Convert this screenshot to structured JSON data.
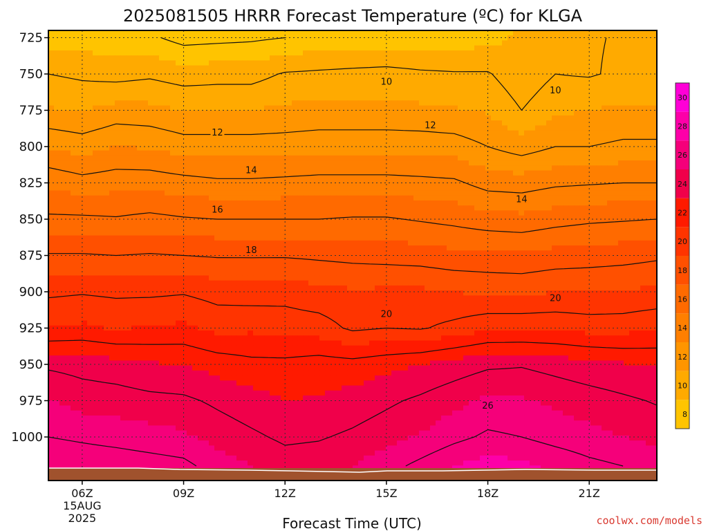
{
  "chart_data": {
    "type": "contour",
    "title": "2025081505 HRRR Forecast Temperature (ºC) for KLGA",
    "xlabel": "Forecast Time (UTC)",
    "ylabel": "",
    "credit": "coolwx.com/models",
    "x_ticks": [
      {
        "label": "06Z",
        "hour": 6,
        "sublabels": [
          "15AUG",
          "2025"
        ]
      },
      {
        "label": "09Z",
        "hour": 9
      },
      {
        "label": "12Z",
        "hour": 12
      },
      {
        "label": "15Z",
        "hour": 15
      },
      {
        "label": "18Z",
        "hour": 18
      },
      {
        "label": "21Z",
        "hour": 21
      }
    ],
    "x_range_hours": [
      5,
      23
    ],
    "y_ticks": [
      725,
      750,
      775,
      800,
      825,
      850,
      875,
      900,
      925,
      950,
      975,
      1000
    ],
    "y_range_hPa": [
      720,
      1030
    ],
    "y_axis_note": "pressure (hPa), inverted",
    "grid": "dotted",
    "colorbar": {
      "ticks": [
        8,
        10,
        12,
        14,
        16,
        18,
        20,
        22,
        24,
        26,
        28,
        30
      ],
      "range": [
        7,
        31
      ],
      "colors": [
        "#ffc400",
        "#ffaa00",
        "#ff9500",
        "#ff7f00",
        "#ff6a00",
        "#ff5000",
        "#ff3400",
        "#ff1a00",
        "#f0004a",
        "#f5007a",
        "#fd00a8",
        "#ff00d7"
      ],
      "boundaries": [
        7,
        9,
        11,
        13,
        15,
        17,
        19,
        21,
        23,
        25,
        27,
        29,
        31
      ]
    },
    "hour_columns": [
      5,
      6,
      7,
      8,
      9,
      10,
      11,
      12,
      13,
      14,
      15,
      16,
      17,
      18,
      19,
      20,
      21,
      22,
      23
    ],
    "levels_hPa": [
      725,
      750,
      775,
      800,
      825,
      850,
      875,
      900,
      925,
      950,
      975,
      1000,
      1020
    ],
    "temperature_grid": [
      [
        8.6,
        8.5,
        8.3,
        8.2,
        7.6,
        7.7,
        7.8,
        8.0,
        8.3,
        8.4,
        8.4,
        8.4,
        8.5,
        8.6,
        9.2,
        9.7,
        9.9,
        10.1,
        10.3
      ],
      [
        10.0,
        9.8,
        9.6,
        9.8,
        9.5,
        9.6,
        9.6,
        10.1,
        10.2,
        10.3,
        10.4,
        10.2,
        10.1,
        10.1,
        9.3,
        10.0,
        9.9,
        10.2,
        10.0
      ],
      [
        11.1,
        10.9,
        11.4,
        11.3,
        11.0,
        11.0,
        11.0,
        11.2,
        11.3,
        11.3,
        11.3,
        11.2,
        11.1,
        10.9,
        10.0,
        10.8,
        11.0,
        11.2,
        11.2
      ],
      [
        12.9,
        12.6,
        13.0,
        12.9,
        12.5,
        12.5,
        12.5,
        12.5,
        12.6,
        12.6,
        12.6,
        12.6,
        12.5,
        12.0,
        11.5,
        12.0,
        12.0,
        12.2,
        12.2
      ],
      [
        14.8,
        14.4,
        14.6,
        14.6,
        14.4,
        14.2,
        14.2,
        14.3,
        14.4,
        14.4,
        14.4,
        14.3,
        14.2,
        13.6,
        13.5,
        13.8,
        13.9,
        14.0,
        14.0
      ],
      [
        16.2,
        16.2,
        16.1,
        16.3,
        16.1,
        16.0,
        16.0,
        16.0,
        16.0,
        16.1,
        16.1,
        15.9,
        15.7,
        15.4,
        15.3,
        15.6,
        15.8,
        15.9,
        16.0
      ],
      [
        18.1,
        18.1,
        18.0,
        18.1,
        18.0,
        17.9,
        17.9,
        17.9,
        17.8,
        17.7,
        17.6,
        17.5,
        17.3,
        17.3,
        17.2,
        17.4,
        17.5,
        17.6,
        17.8
      ],
      [
        19.8,
        19.9,
        19.8,
        19.8,
        19.9,
        19.6,
        19.5,
        19.6,
        19.3,
        19.1,
        19.2,
        19.2,
        19.0,
        18.8,
        18.8,
        19.0,
        19.0,
        19.1,
        19.2
      ],
      [
        21.0,
        21.2,
        20.9,
        21.1,
        21.2,
        20.7,
        20.8,
        20.6,
        20.5,
        19.8,
        20.0,
        19.9,
        20.3,
        20.8,
        20.8,
        20.8,
        20.6,
        20.6,
        20.9
      ],
      [
        23.8,
        23.6,
        23.4,
        23.1,
        23.0,
        22.6,
        22.3,
        22.3,
        22.5,
        22.4,
        22.7,
        23.0,
        23.4,
        23.8,
        23.9,
        23.6,
        23.3,
        23.1,
        22.9
      ],
      [
        25.1,
        24.6,
        24.5,
        24.3,
        24.2,
        23.8,
        23.4,
        23.0,
        23.1,
        23.4,
        23.8,
        24.2,
        24.7,
        25.2,
        25.1,
        24.8,
        24.5,
        24.2,
        23.9
      ],
      [
        26.0,
        25.8,
        25.6,
        25.4,
        25.2,
        24.6,
        24.2,
        23.8,
        23.9,
        24.2,
        24.6,
        25.1,
        25.7,
        26.2,
        26.0,
        25.6,
        25.3,
        25.0,
        24.7
      ],
      [
        27.0,
        26.8,
        26.7,
        26.5,
        26.3,
        25.5,
        25.0,
        24.5,
        24.6,
        25.0,
        25.6,
        26.3,
        27.0,
        27.5,
        27.2,
        26.8,
        26.3,
        26.0,
        25.6
      ]
    ],
    "contour_labels": [
      {
        "value": "10",
        "hour": 15.0,
        "level": 755
      },
      {
        "value": "10",
        "hour": 20.0,
        "level": 761
      },
      {
        "value": "12",
        "hour": 10.0,
        "level": 790
      },
      {
        "value": "12",
        "hour": 16.3,
        "level": 785
      },
      {
        "value": "14",
        "hour": 11.0,
        "level": 816
      },
      {
        "value": "14",
        "hour": 19.0,
        "level": 836
      },
      {
        "value": "16",
        "hour": 10.0,
        "level": 843
      },
      {
        "value": "18",
        "hour": 11.0,
        "level": 871
      },
      {
        "value": "20",
        "hour": 15.0,
        "level": 915
      },
      {
        "value": "20",
        "hour": 20.0,
        "level": 904
      },
      {
        "value": "26",
        "hour": 18.0,
        "level": 978
      }
    ]
  }
}
